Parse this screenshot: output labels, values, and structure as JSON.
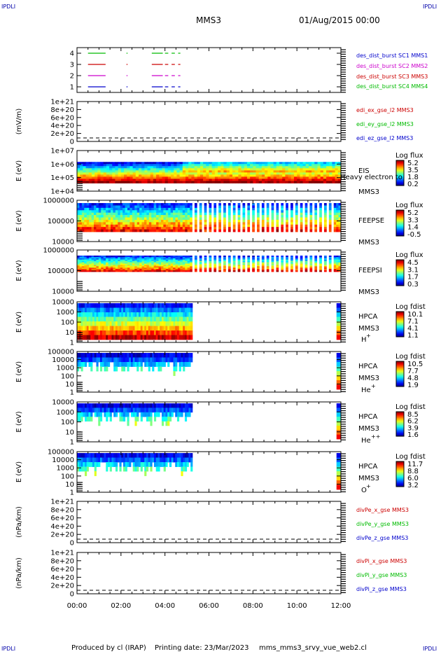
{
  "corner_label": "IPDLI",
  "header": {
    "spacecraft": "MMS3",
    "datetime": "01/Aug/2015 00:00"
  },
  "footer": {
    "produced_by": "Produced by cl (IRAP)",
    "printing_date": "Printing date: 23/Mar/2023",
    "script": "mms_mms3_srvy_vue_web2.cl"
  },
  "chart_data": [
    {
      "type": "line",
      "id": "dist",
      "ylabel": "",
      "ylim": [
        0.5,
        4.5
      ],
      "yticks": [
        "1",
        "2",
        "3",
        "4"
      ],
      "series": [
        {
          "name": "des_dist_burst SC1 MMS1",
          "color": "#0000cc",
          "level": 1
        },
        {
          "name": "des_dist_burst SC2 MMS2",
          "color": "#cc00cc",
          "level": 2
        },
        {
          "name": "des_dist_burst SC3 MMS3",
          "color": "#cc0000",
          "level": 3
        },
        {
          "name": "des_dist_burst SC4 MMS4",
          "color": "#00bb00",
          "level": 4
        }
      ],
      "segments_hours": [
        [
          0.5,
          1.3
        ],
        [
          2.25,
          2.3
        ],
        [
          3.4,
          3.9
        ],
        [
          4.0,
          4.15
        ],
        [
          4.3,
          4.45
        ],
        [
          4.6,
          4.7
        ]
      ]
    },
    {
      "type": "line",
      "id": "edi",
      "ylabel": "(mV/m)",
      "yticks": [
        "0",
        "2e+20",
        "4e+20",
        "6e+20",
        "8e+20",
        "1e+21"
      ],
      "series": [
        {
          "name": "edi_ex_gse_l2 MMS3",
          "color": "#cc0000"
        },
        {
          "name": "edi_ey_gse_l2 MMS3",
          "color": "#00bb00"
        },
        {
          "name": "edi_ez_gse_l2 MMS3",
          "color": "#0000cc"
        }
      ]
    },
    {
      "type": "heatmap",
      "id": "eis",
      "ylabel": "E (eV)",
      "yticks": [
        "1e+04",
        "1e+05",
        "1e+06",
        "1e+07"
      ],
      "labels": [
        "EIS",
        "MMS3"
      ],
      "overlay": "Heavy electron to",
      "colorbar_title": "Log flux",
      "colorbar_ticks": [
        "5.2",
        "3.5",
        "1.8",
        "0.2"
      ]
    },
    {
      "type": "heatmap",
      "id": "feepse",
      "ylabel": "E (eV)",
      "yticks": [
        "10000",
        "100000",
        "1000000"
      ],
      "labels": [
        "FEEPSE",
        "MMS3"
      ],
      "colorbar_title": "Log flux",
      "colorbar_ticks": [
        "5.2",
        "3.3",
        "1.4",
        "-0.5"
      ]
    },
    {
      "type": "heatmap",
      "id": "feepsi",
      "ylabel": "E (eV)",
      "yticks": [
        "10000",
        "100000",
        "1000000"
      ],
      "labels": [
        "FEEPSI",
        "MMS3"
      ],
      "colorbar_title": "Log flux",
      "colorbar_ticks": [
        "4.5",
        "3.1",
        "1.7",
        "0.3"
      ]
    },
    {
      "type": "heatmap",
      "id": "hpca_h",
      "ylabel": "E (eV)",
      "yticks": [
        "1",
        "10",
        "100",
        "1000",
        "10000"
      ],
      "labels": [
        "HPCA",
        "MMS3"
      ],
      "species": "H",
      "charge": "+",
      "colorbar_title": "Log fdist",
      "colorbar_ticks": [
        "10.1",
        "7.1",
        "4.1",
        "1.1"
      ]
    },
    {
      "type": "heatmap",
      "id": "hpca_he",
      "ylabel": "E (eV)",
      "yticks": [
        "1",
        "10",
        "100",
        "1000",
        "10000",
        "100000"
      ],
      "labels": [
        "HPCA",
        "MMS3"
      ],
      "species": "He",
      "charge": "+",
      "colorbar_title": "Log fdist",
      "colorbar_ticks": [
        "10.5",
        "7.7",
        "4.8",
        "1.9"
      ]
    },
    {
      "type": "heatmap",
      "id": "hpca_hepp",
      "ylabel": "E (eV)",
      "yticks": [
        "1",
        "10",
        "100",
        "1000",
        "10000"
      ],
      "labels": [
        "HPCA",
        "MMS3"
      ],
      "species": "He",
      "charge": "++",
      "colorbar_title": "Log fdist",
      "colorbar_ticks": [
        "8.5",
        "6.2",
        "3.9",
        "1.6"
      ]
    },
    {
      "type": "heatmap",
      "id": "hpca_o",
      "ylabel": "E (eV)",
      "yticks": [
        "1",
        "10",
        "100",
        "1000",
        "10000",
        "100000"
      ],
      "labels": [
        "HPCA",
        "MMS3"
      ],
      "species": "O",
      "charge": "+",
      "colorbar_title": "Log fdist",
      "colorbar_ticks": [
        "11.7",
        "8.8",
        "6.0",
        "3.2"
      ]
    },
    {
      "type": "line",
      "id": "divpe",
      "ylabel": "(nPa/km)",
      "yticks": [
        "0",
        "2e+20",
        "4e+20",
        "6e+20",
        "8e+20",
        "1e+21"
      ],
      "series": [
        {
          "name": "divPe_x_gse MMS3",
          "color": "#cc0000"
        },
        {
          "name": "divPe_y_gse MMS3",
          "color": "#00bb00"
        },
        {
          "name": "divPe_z_gse MMS3",
          "color": "#0000cc"
        }
      ]
    },
    {
      "type": "line",
      "id": "divpi",
      "ylabel": "(nPa/km)",
      "yticks": [
        "0",
        "2e+20",
        "4e+20",
        "6e+20",
        "8e+20",
        "1e+21"
      ],
      "series": [
        {
          "name": "divPi_x_gse MMS3",
          "color": "#cc0000"
        },
        {
          "name": "divPi_y_gse MMS3",
          "color": "#00bb00"
        },
        {
          "name": "divPi_z_gse MMS3",
          "color": "#0000cc"
        }
      ]
    }
  ],
  "x_axis": {
    "ticks": [
      "00:00",
      "02:00",
      "04:00",
      "06:00",
      "08:00",
      "10:00",
      "12:00"
    ],
    "range_hours": [
      0,
      12
    ]
  },
  "data_coverage_hours": {
    "hpca": [
      0,
      5.25
    ],
    "hpca_end": [
      11.8,
      12
    ]
  }
}
